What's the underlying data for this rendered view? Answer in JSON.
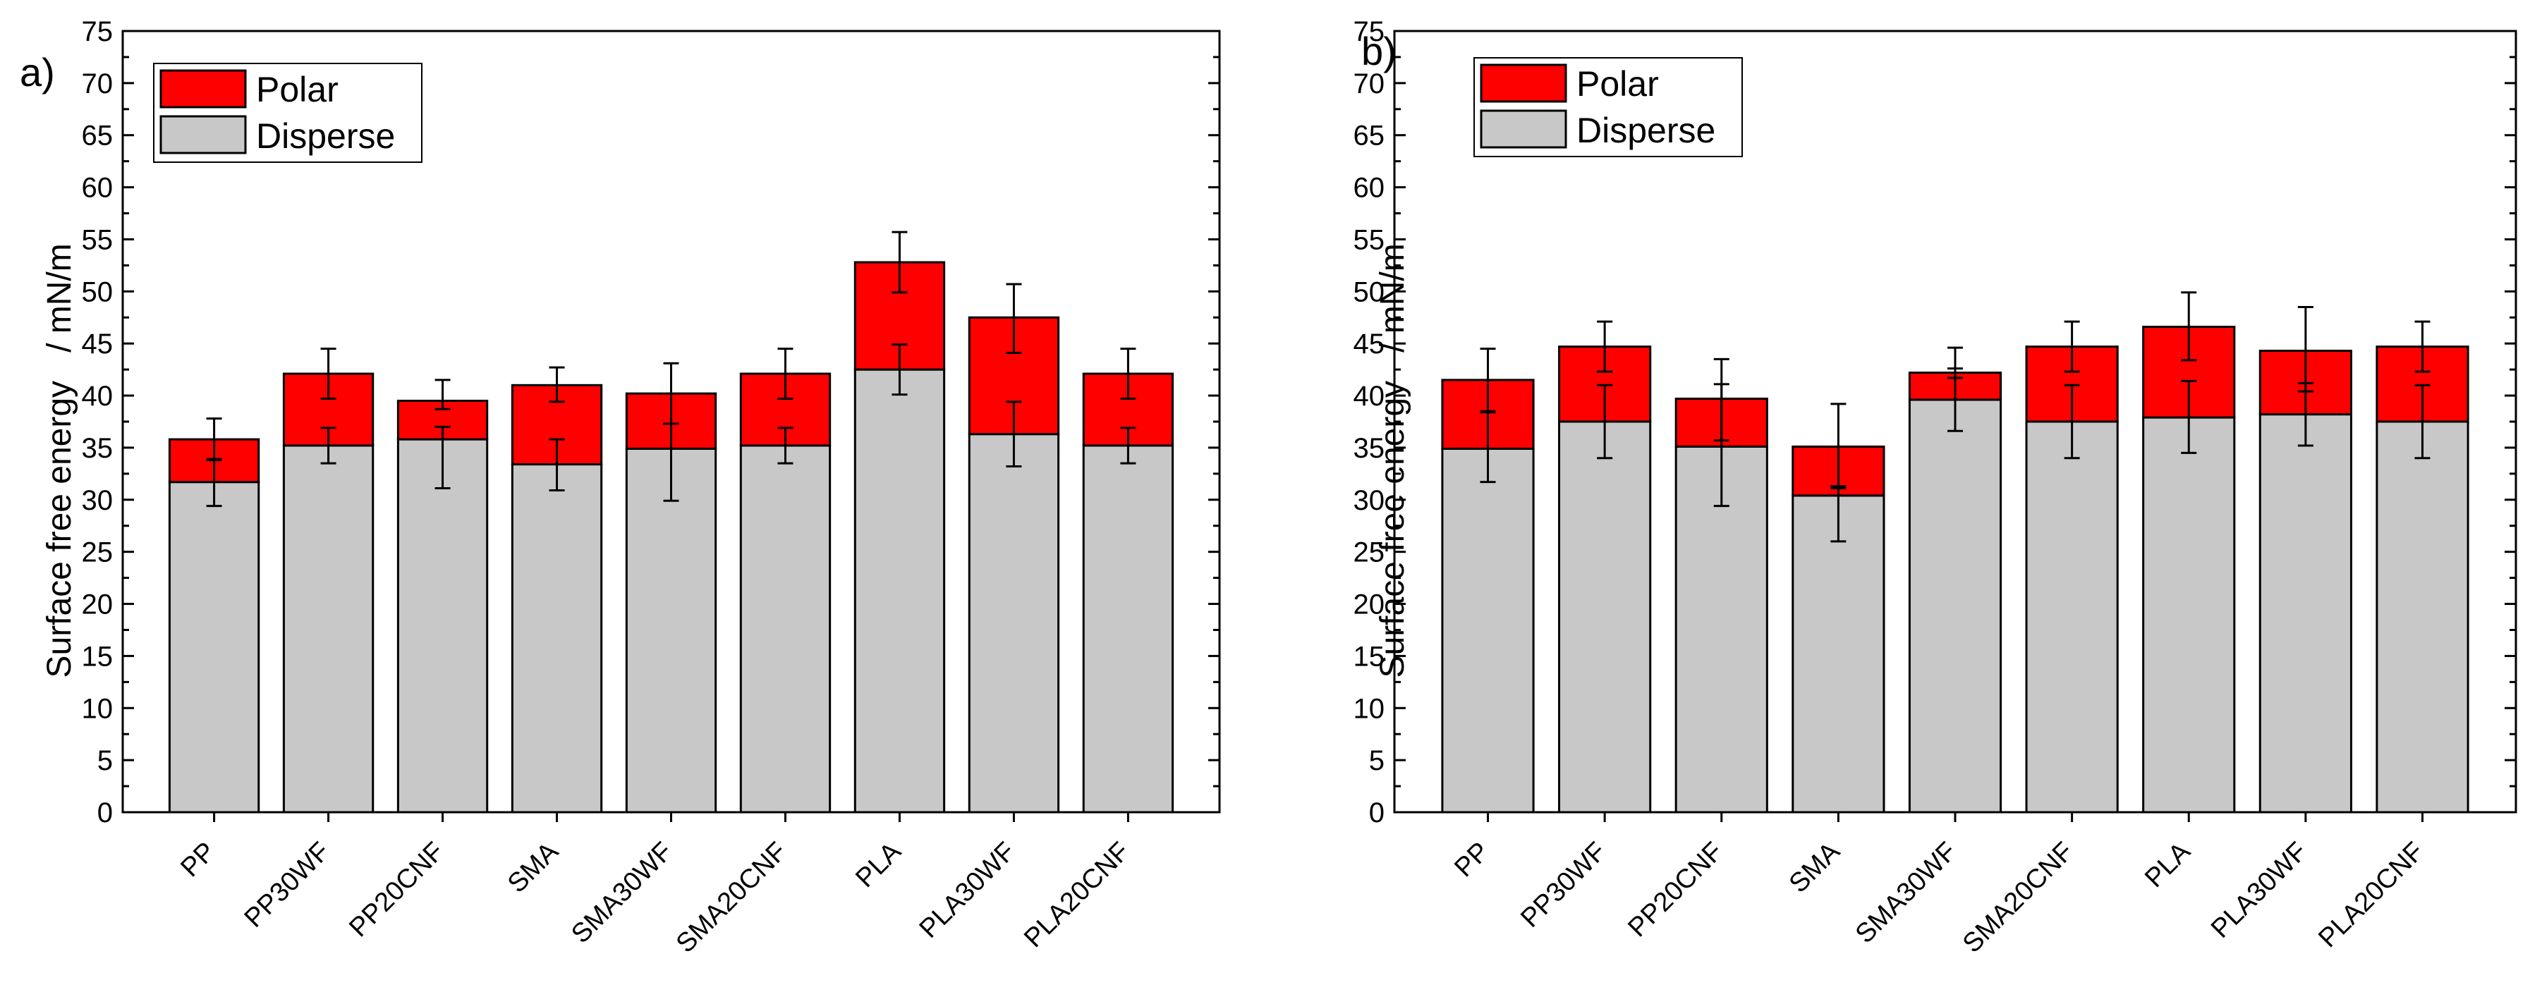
{
  "chart_data": [
    {
      "type": "bar",
      "stacked": true,
      "panel_label": "a)",
      "ylabel": "Surface free energy   / mN/m",
      "ylim": [
        0,
        75
      ],
      "y_major_step": 5,
      "categories": [
        "PP",
        "PP30WF",
        "PP20CNF",
        "SMA",
        "SMA30WF",
        "SMA20CNF",
        "PLA",
        "PLA30WF",
        "PLA20CNF"
      ],
      "series": [
        {
          "name": "Disperse",
          "color": "#c8c8c8",
          "values": [
            31.7,
            35.2,
            35.8,
            33.4,
            34.9,
            35.2,
            42.5,
            36.3,
            35.2
          ],
          "err_low": [
            2.3,
            1.7,
            4.7,
            2.5,
            5.0,
            1.7,
            2.4,
            3.1,
            1.7
          ],
          "err_high": [
            2.2,
            1.7,
            1.2,
            2.4,
            2.4,
            1.7,
            2.4,
            3.1,
            1.7
          ]
        },
        {
          "name": "Polar",
          "color": "#ff0000",
          "values": [
            4.1,
            6.9,
            3.7,
            7.6,
            5.3,
            6.9,
            10.3,
            11.2,
            6.9
          ],
          "err_low": [
            2.0,
            2.4,
            0.8,
            1.6,
            2.9,
            2.4,
            2.9,
            3.4,
            2.4
          ],
          "err_high": [
            2.0,
            2.4,
            2.0,
            1.7,
            2.9,
            2.4,
            2.9,
            3.2,
            2.4
          ]
        }
      ]
    },
    {
      "type": "bar",
      "stacked": true,
      "panel_label": "b)",
      "ylabel": "Surface free energy   / mN/m",
      "ylim": [
        0,
        75
      ],
      "y_major_step": 5,
      "categories": [
        "PP",
        "PP30WF",
        "PP20CNF",
        "SMA",
        "SMA30WF",
        "SMA20CNF",
        "PLA",
        "PLA30WF",
        "PLA20CNF"
      ],
      "series": [
        {
          "name": "Disperse",
          "color": "#c8c8c8",
          "values": [
            34.9,
            37.5,
            35.1,
            30.4,
            39.6,
            37.5,
            37.9,
            38.2,
            37.5
          ],
          "err_low": [
            3.2,
            3.5,
            5.7,
            4.4,
            3.0,
            3.5,
            3.4,
            3.0,
            3.5
          ],
          "err_high": [
            3.6,
            3.5,
            6.0,
            0.9,
            3.0,
            3.5,
            3.5,
            3.0,
            3.5
          ]
        },
        {
          "name": "Polar",
          "color": "#ff0000",
          "values": [
            6.6,
            7.2,
            4.6,
            4.7,
            2.6,
            7.2,
            8.7,
            6.1,
            7.2
          ],
          "err_low": [
            3.1,
            2.4,
            4.0,
            4.0,
            0.5,
            2.4,
            3.2,
            3.9,
            2.4
          ],
          "err_high": [
            3.0,
            2.4,
            3.8,
            4.1,
            2.4,
            2.4,
            3.3,
            4.2,
            2.4
          ]
        }
      ]
    }
  ]
}
